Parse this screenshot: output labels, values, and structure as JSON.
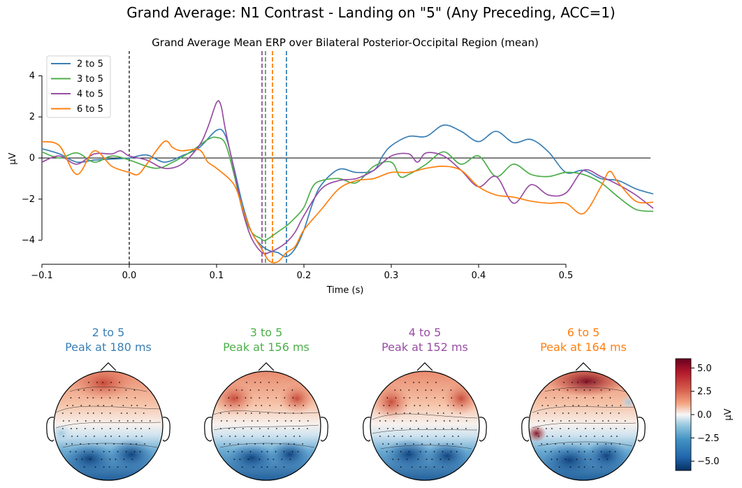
{
  "figure": {
    "suptitle": "Grand Average: N1 Contrast - Landing on \"5\" (Any Preceding, ACC=1)"
  },
  "chart_data": [
    {
      "type": "line",
      "title": "Grand Average Mean ERP over Bilateral Posterior-Occipital Region (mean)",
      "xlabel": "Time (s)",
      "ylabel": "µV",
      "xlim": [
        -0.1,
        0.6
      ],
      "ylim": [
        -5.2,
        5.1
      ],
      "x_ticks": [
        -0.1,
        0.0,
        0.1,
        0.2,
        0.3,
        0.4,
        0.5
      ],
      "x_tick_labels": [
        "−0.1",
        "0.0",
        "0.1",
        "0.2",
        "0.3",
        "0.4",
        "0.5"
      ],
      "y_ticks": [
        -4,
        -2,
        0,
        2,
        4
      ],
      "y_tick_labels": [
        "−4",
        "−2",
        "0",
        "2",
        "4"
      ],
      "legend_position": "top-left",
      "zero_line": true,
      "onset_line_x": 0.0,
      "series": [
        {
          "name": "2 to 5",
          "color": "#3a7fb5",
          "peak_time": 0.18,
          "points": [
            [
              -0.1,
              0.45
            ],
            [
              -0.08,
              0.2
            ],
            [
              -0.06,
              -0.2
            ],
            [
              -0.04,
              -0.1
            ],
            [
              -0.02,
              -0.05
            ],
            [
              0.0,
              0.0
            ],
            [
              0.02,
              0.15
            ],
            [
              0.04,
              -0.2
            ],
            [
              0.06,
              0.1
            ],
            [
              0.08,
              0.5
            ],
            [
              0.1,
              1.35
            ],
            [
              0.11,
              1.1
            ],
            [
              0.12,
              -0.5
            ],
            [
              0.13,
              -2.3
            ],
            [
              0.14,
              -3.6
            ],
            [
              0.15,
              -4.2
            ],
            [
              0.16,
              -4.5
            ],
            [
              0.17,
              -4.6
            ],
            [
              0.18,
              -4.8
            ],
            [
              0.19,
              -4.4
            ],
            [
              0.2,
              -3.5
            ],
            [
              0.21,
              -2.2
            ],
            [
              0.22,
              -1.3
            ],
            [
              0.24,
              -0.55
            ],
            [
              0.26,
              -0.7
            ],
            [
              0.28,
              -0.6
            ],
            [
              0.29,
              0.1
            ],
            [
              0.3,
              0.6
            ],
            [
              0.32,
              1.05
            ],
            [
              0.34,
              1.05
            ],
            [
              0.36,
              1.6
            ],
            [
              0.38,
              1.3
            ],
            [
              0.4,
              0.8
            ],
            [
              0.42,
              1.3
            ],
            [
              0.44,
              0.75
            ],
            [
              0.46,
              0.9
            ],
            [
              0.48,
              0.3
            ],
            [
              0.5,
              -0.7
            ],
            [
              0.52,
              -0.6
            ],
            [
              0.54,
              -1.0
            ],
            [
              0.56,
              -1.1
            ],
            [
              0.58,
              -1.5
            ],
            [
              0.6,
              -1.75
            ]
          ]
        },
        {
          "name": "3 to 5",
          "color": "#4caf49",
          "peak_time": 0.156,
          "points": [
            [
              -0.1,
              0.3
            ],
            [
              -0.08,
              0.0
            ],
            [
              -0.06,
              0.25
            ],
            [
              -0.04,
              -0.2
            ],
            [
              -0.02,
              0.1
            ],
            [
              0.0,
              -0.1
            ],
            [
              0.03,
              -0.5
            ],
            [
              0.05,
              -0.2
            ],
            [
              0.07,
              0.3
            ],
            [
              0.09,
              0.9
            ],
            [
              0.1,
              1.0
            ],
            [
              0.11,
              0.7
            ],
            [
              0.12,
              -0.8
            ],
            [
              0.13,
              -2.6
            ],
            [
              0.14,
              -3.6
            ],
            [
              0.15,
              -3.9
            ],
            [
              0.156,
              -4.0
            ],
            [
              0.17,
              -3.6
            ],
            [
              0.18,
              -3.3
            ],
            [
              0.19,
              -2.9
            ],
            [
              0.2,
              -2.4
            ],
            [
              0.21,
              -1.4
            ],
            [
              0.22,
              -1.1
            ],
            [
              0.24,
              -1.0
            ],
            [
              0.26,
              -1.2
            ],
            [
              0.28,
              -0.4
            ],
            [
              0.3,
              -0.2
            ],
            [
              0.31,
              -0.9
            ],
            [
              0.32,
              -0.8
            ],
            [
              0.34,
              -0.3
            ],
            [
              0.36,
              0.3
            ],
            [
              0.38,
              -0.3
            ],
            [
              0.4,
              0.1
            ],
            [
              0.42,
              -0.9
            ],
            [
              0.44,
              -0.3
            ],
            [
              0.46,
              -0.8
            ],
            [
              0.48,
              -0.9
            ],
            [
              0.5,
              -0.7
            ],
            [
              0.52,
              -0.8
            ],
            [
              0.54,
              -1.2
            ],
            [
              0.56,
              -1.9
            ],
            [
              0.58,
              -2.5
            ],
            [
              0.6,
              -2.6
            ]
          ]
        },
        {
          "name": "4 to 5",
          "color": "#984ea3",
          "peak_time": 0.152,
          "points": [
            [
              -0.1,
              -0.2
            ],
            [
              -0.08,
              0.1
            ],
            [
              -0.06,
              -0.3
            ],
            [
              -0.04,
              0.2
            ],
            [
              -0.02,
              0.2
            ],
            [
              -0.01,
              0.35
            ],
            [
              0.0,
              0.1
            ],
            [
              0.02,
              -0.1
            ],
            [
              0.04,
              -0.5
            ],
            [
              0.06,
              -0.3
            ],
            [
              0.08,
              0.6
            ],
            [
              0.09,
              1.5
            ],
            [
              0.1,
              2.7
            ],
            [
              0.105,
              2.55
            ],
            [
              0.11,
              1.4
            ],
            [
              0.12,
              -0.6
            ],
            [
              0.13,
              -2.6
            ],
            [
              0.14,
              -3.9
            ],
            [
              0.152,
              -4.6
            ],
            [
              0.16,
              -4.6
            ],
            [
              0.17,
              -4.4
            ],
            [
              0.18,
              -4.1
            ],
            [
              0.19,
              -3.6
            ],
            [
              0.2,
              -2.8
            ],
            [
              0.22,
              -1.5
            ],
            [
              0.24,
              -1.1
            ],
            [
              0.26,
              -1.0
            ],
            [
              0.28,
              -0.6
            ],
            [
              0.3,
              0.1
            ],
            [
              0.32,
              0.2
            ],
            [
              0.33,
              -0.2
            ],
            [
              0.34,
              0.25
            ],
            [
              0.36,
              0.1
            ],
            [
              0.38,
              -0.6
            ],
            [
              0.4,
              -1.4
            ],
            [
              0.42,
              -0.9
            ],
            [
              0.44,
              -2.2
            ],
            [
              0.46,
              -1.3
            ],
            [
              0.48,
              -1.8
            ],
            [
              0.5,
              -1.7
            ],
            [
              0.52,
              -0.6
            ],
            [
              0.54,
              -0.9
            ],
            [
              0.56,
              -1.3
            ],
            [
              0.58,
              -1.8
            ],
            [
              0.6,
              -2.45
            ]
          ]
        },
        {
          "name": "6 to 5",
          "color": "#ff7f0e",
          "peak_time": 0.164,
          "points": [
            [
              -0.1,
              0.8
            ],
            [
              -0.08,
              0.6
            ],
            [
              -0.06,
              -0.8
            ],
            [
              -0.04,
              0.35
            ],
            [
              -0.02,
              -0.4
            ],
            [
              0.0,
              -0.7
            ],
            [
              0.01,
              -0.8
            ],
            [
              0.02,
              -0.3
            ],
            [
              0.04,
              0.8
            ],
            [
              0.05,
              0.5
            ],
            [
              0.06,
              0.35
            ],
            [
              0.08,
              0.4
            ],
            [
              0.09,
              -0.2
            ],
            [
              0.1,
              -0.5
            ],
            [
              0.12,
              -1.3
            ],
            [
              0.13,
              -2.5
            ],
            [
              0.14,
              -3.6
            ],
            [
              0.15,
              -4.3
            ],
            [
              0.16,
              -5.0
            ],
            [
              0.17,
              -5.05
            ],
            [
              0.18,
              -4.6
            ],
            [
              0.19,
              -4.3
            ],
            [
              0.2,
              -3.5
            ],
            [
              0.22,
              -2.5
            ],
            [
              0.24,
              -1.5
            ],
            [
              0.26,
              -1.1
            ],
            [
              0.28,
              -1.0
            ],
            [
              0.3,
              -0.7
            ],
            [
              0.32,
              -0.7
            ],
            [
              0.34,
              -0.5
            ],
            [
              0.36,
              -0.4
            ],
            [
              0.38,
              -0.6
            ],
            [
              0.4,
              -1.4
            ],
            [
              0.42,
              -1.8
            ],
            [
              0.44,
              -1.9
            ],
            [
              0.46,
              -2.1
            ],
            [
              0.48,
              -2.2
            ],
            [
              0.5,
              -2.2
            ],
            [
              0.52,
              -2.7
            ],
            [
              0.54,
              -1.4
            ],
            [
              0.55,
              -0.65
            ],
            [
              0.56,
              -1.2
            ],
            [
              0.58,
              -2.1
            ],
            [
              0.6,
              -2.15
            ]
          ]
        }
      ]
    },
    {
      "type": "heatmap",
      "colorbar_label": "µV",
      "colorbar_range": [
        -6,
        6
      ],
      "colorbar_ticks": [
        5.0,
        2.5,
        0.0,
        -2.5,
        -5.0
      ],
      "colorbar_tick_labels": [
        "5.0",
        "2.5",
        "0.0",
        "−2.5",
        "−5.0"
      ],
      "maps": [
        {
          "title": "2 to 5",
          "subtitle": "Peak at 180 ms",
          "color": "#3a7fb5"
        },
        {
          "title": "3 to 5",
          "subtitle": "Peak at 156 ms",
          "color": "#4caf49"
        },
        {
          "title": "4 to 5",
          "subtitle": "Peak at 152 ms",
          "color": "#984ea3"
        },
        {
          "title": "6 to 5",
          "subtitle": "Peak at 164 ms",
          "color": "#ff7f0e"
        }
      ]
    }
  ]
}
